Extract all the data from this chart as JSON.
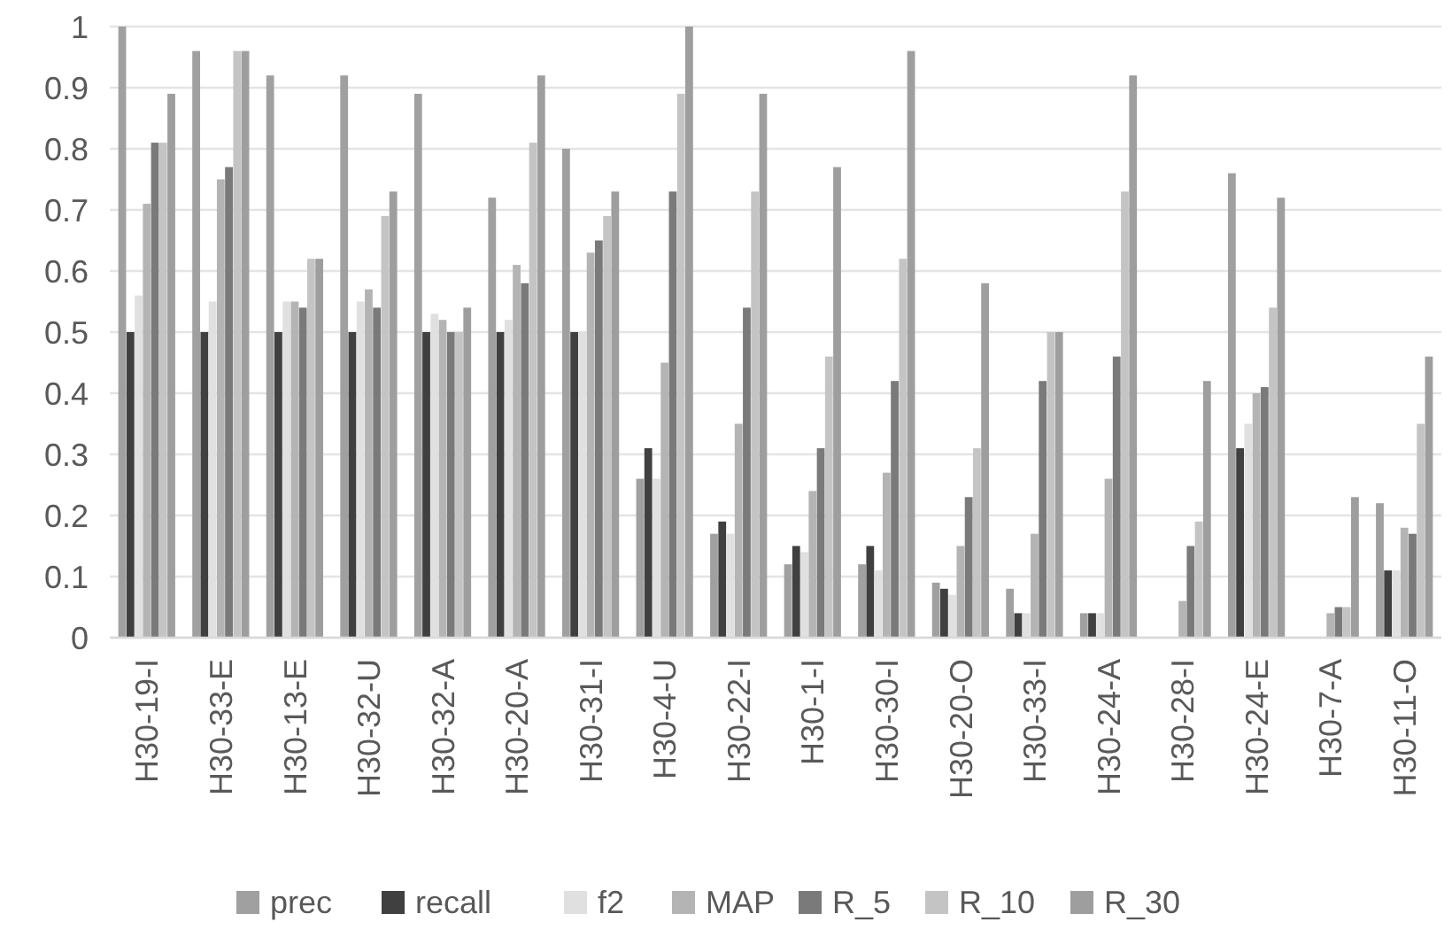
{
  "chart_data": {
    "type": "bar",
    "categories": [
      "H30-19-I",
      "H30-33-E",
      "H30-13-E",
      "H30-32-U",
      "H30-32-A",
      "H30-20-A",
      "H30-31-I",
      "H30-4-U",
      "H30-22-I",
      "H30-1-I",
      "H30-30-I",
      "H30-20-O",
      "H30-33-I",
      "H30-24-A",
      "H30-28-I",
      "H30-24-E",
      "H30-7-A",
      "H30-11-O"
    ],
    "series": [
      {
        "name": "prec",
        "color": "#a0a0a0",
        "values": [
          1,
          0.96,
          0.92,
          0.92,
          0.89,
          0.72,
          0.8,
          0.26,
          0.17,
          0.12,
          0.12,
          0.09,
          0.08,
          0.04,
          0,
          0.76,
          0,
          0.22
        ]
      },
      {
        "name": "recall",
        "color": "#404040",
        "values": [
          0.5,
          0.5,
          0.5,
          0.5,
          0.5,
          0.5,
          0.5,
          0.31,
          0.19,
          0.15,
          0.15,
          0.08,
          0.04,
          0.04,
          0,
          0.31,
          0,
          0.11
        ]
      },
      {
        "name": "f2",
        "color": "#e0e0e0",
        "values": [
          0.56,
          0.55,
          0.55,
          0.55,
          0.53,
          0.52,
          0.5,
          0.26,
          0.17,
          0.14,
          0.11,
          0.07,
          0.04,
          0.04,
          0,
          0.35,
          0,
          0.11
        ]
      },
      {
        "name": "MAP",
        "color": "#b4b4b4",
        "values": [
          0.71,
          0.75,
          0.55,
          0.57,
          0.52,
          0.61,
          0.63,
          0.45,
          0.35,
          0.24,
          0.27,
          0.15,
          0.17,
          0.26,
          0.06,
          0.4,
          0.04,
          0.18
        ]
      },
      {
        "name": "R_5",
        "color": "#7a7a7a",
        "values": [
          0.81,
          0.77,
          0.54,
          0.54,
          0.5,
          0.58,
          0.65,
          0.73,
          0.54,
          0.31,
          0.42,
          0.23,
          0.42,
          0.46,
          0.15,
          0.41,
          0.05,
          0.17
        ]
      },
      {
        "name": "R_10",
        "color": "#c4c4c4",
        "values": [
          0.81,
          0.96,
          0.62,
          0.69,
          0.5,
          0.81,
          0.69,
          0.89,
          0.73,
          0.46,
          0.62,
          0.31,
          0.5,
          0.73,
          0.19,
          0.54,
          0.05,
          0.35
        ]
      },
      {
        "name": "R_30",
        "color": "#9e9e9e",
        "values": [
          0.89,
          0.96,
          0.62,
          0.73,
          0.54,
          0.92,
          0.73,
          1,
          0.89,
          0.77,
          0.96,
          0.58,
          0.5,
          0.92,
          0.42,
          0.72,
          0.23,
          0.46
        ]
      }
    ],
    "ylim": [
      0,
      1
    ],
    "yticks": [
      0,
      0.1,
      0.2,
      0.3,
      0.4,
      0.5,
      0.6,
      0.7,
      0.8,
      0.9,
      1
    ],
    "grid": "y",
    "legend": "bottom"
  }
}
